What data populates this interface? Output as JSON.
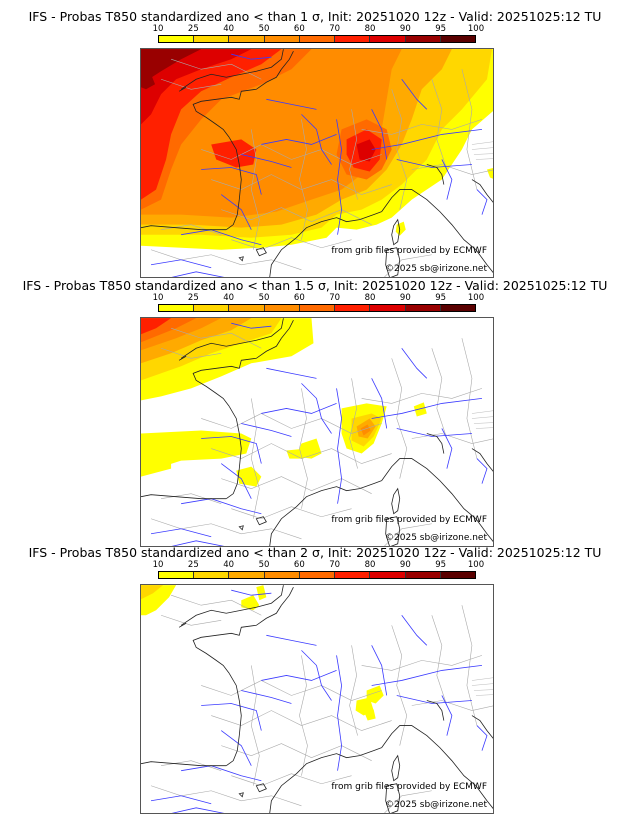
{
  "colorbar": {
    "ticks": [
      "10",
      "25",
      "40",
      "50",
      "60",
      "70",
      "80",
      "90",
      "95",
      "100"
    ],
    "colors": [
      "#ffff00",
      "#ffd700",
      "#ffaa00",
      "#ff8c00",
      "#ff6a00",
      "#ff2000",
      "#dd0000",
      "#990000",
      "#5a0000"
    ]
  },
  "panels": [
    {
      "title": "IFS - Probas T850  standardized ano < than 1 σ, Init: 20251020 12z - Valid: 20251025:12 TU",
      "credit_source": "from grib files provided by ECMWF",
      "credit_copyright": "©2025 sb@irizone.net"
    },
    {
      "title": "IFS - Probas T850  standardized ano < than 1.5 σ, Init: 20251020 12z - Valid: 20251025:12 TU",
      "credit_source": "from grib files provided by ECMWF",
      "credit_copyright": "©2025 sb@irizone.net"
    },
    {
      "title": "IFS - Probas T850  standardized ano < than 2 σ, Init: 20251020 12z - Valid: 20251025:12 TU",
      "credit_source": "from grib files provided by ECMWF",
      "credit_copyright": "©2025 sb@irizone.net"
    }
  ],
  "chart_data": [
    {
      "type": "heatmap",
      "title": "IFS - Probas T850  standardized ano < than 1 σ, Init: 20251020 12z - Valid: 20251025:12 TU",
      "legend_levels": [
        10,
        25,
        40,
        50,
        60,
        70,
        80,
        90,
        95,
        100
      ],
      "units": "%",
      "region": "Western Europe (France, UK, Spain, Italy)",
      "summary": "High probabilities (70-95%) over Atlantic and western France, 60-80% over Alps/Rhône; decreasing to 10-40% toward Spain and Germany"
    },
    {
      "type": "heatmap",
      "title": "IFS - Probas T850  standardized ano < than 1.5 σ, Init: 20251020 12z - Valid: 20251025:12 TU",
      "legend_levels": [
        10,
        25,
        40,
        50,
        60,
        70,
        80,
        90,
        95,
        100
      ],
      "units": "%",
      "region": "Western Europe (France, UK, Spain, Italy)",
      "summary": "Up to 70-80% near SW England/Atlantic; 10-50% patches over Bay of Biscay, SW France and French Alps"
    },
    {
      "type": "heatmap",
      "title": "IFS - Probas T850  standardized ano < than 2 σ, Init: 20251020 12z - Valid: 20251025:12 TU",
      "legend_levels": [
        10,
        25,
        40,
        50,
        60,
        70,
        80,
        90,
        95,
        100
      ],
      "units": "%",
      "region": "Western Europe (France, UK, Spain, Italy)",
      "summary": "Only small 10-25% patches over far NW Atlantic corner, southern England and French Alps"
    }
  ]
}
